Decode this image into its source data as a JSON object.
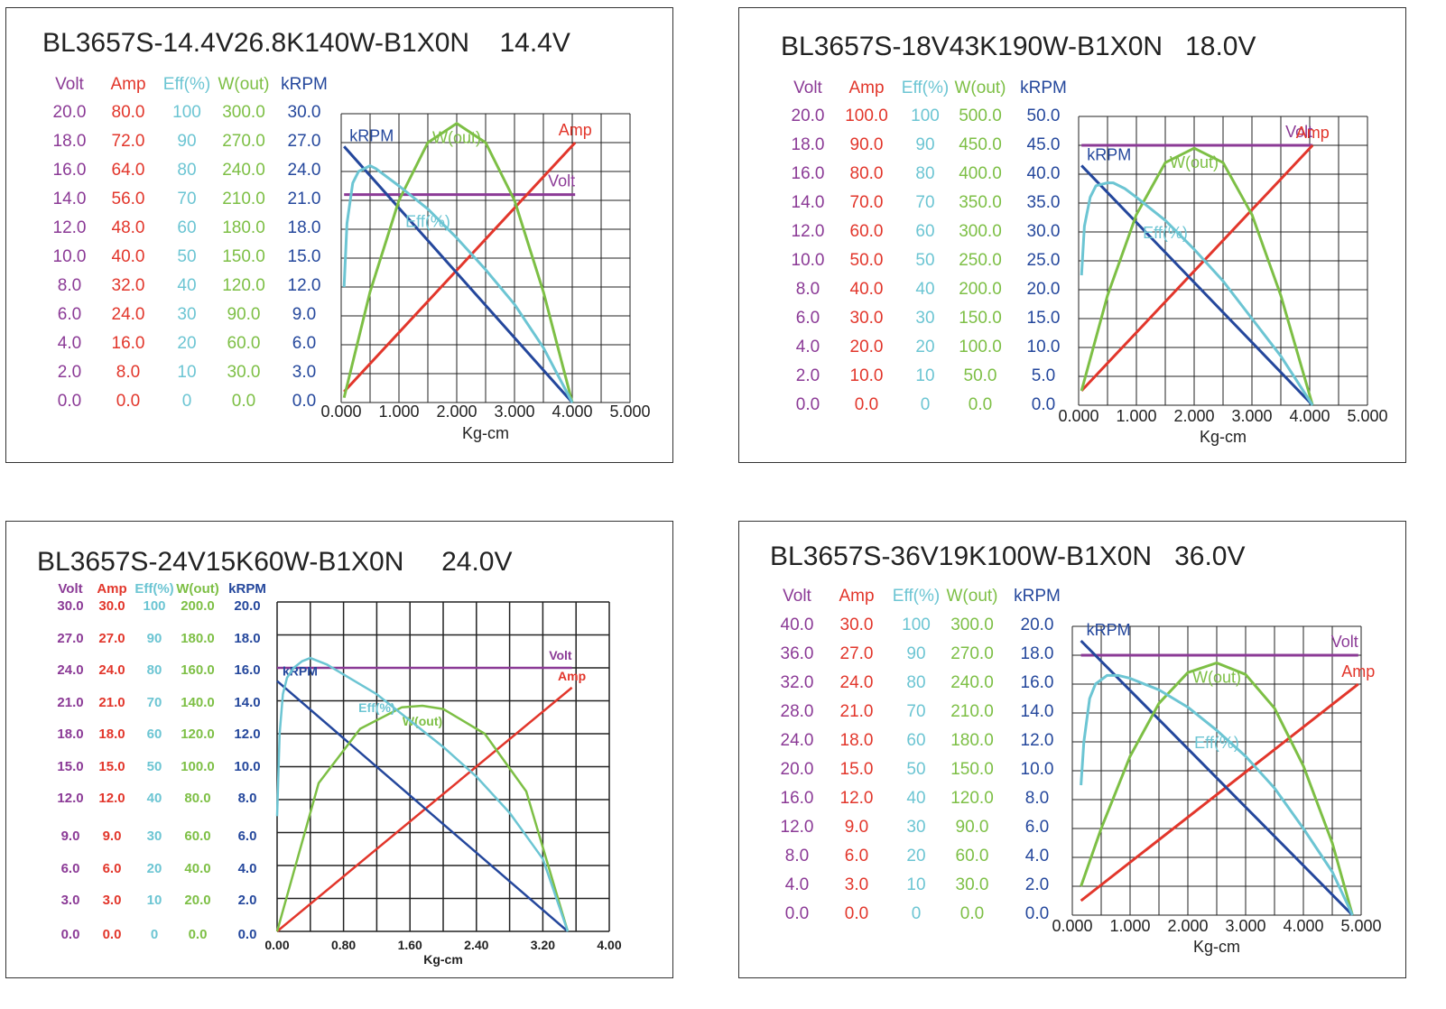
{
  "colors": {
    "volt": "#8B3A96",
    "amp": "#E2362B",
    "eff": "#6CC5D3",
    "wout": "#7DBF45",
    "krpm": "#24479C",
    "grid": "#222222"
  },
  "chart_data": [
    {
      "type": "line",
      "title": "BL3657S-14.4V26.8K140W-B1X0N",
      "voltage_label": "14.4V",
      "xlabel": "Kg-cm",
      "x_ticks": [
        "0.000",
        "1.000",
        "2.000",
        "3.000",
        "4.000",
        "5.000"
      ],
      "xlim": [
        0,
        5
      ],
      "grid": true,
      "y_axes": [
        {
          "name": "Volt",
          "ticks": [
            "20.0",
            "18.0",
            "16.0",
            "14.0",
            "12.0",
            "10.0",
            "8.0",
            "6.0",
            "4.0",
            "2.0",
            "0.0"
          ],
          "max": 20
        },
        {
          "name": "Amp",
          "ticks": [
            "80.0",
            "72.0",
            "64.0",
            "56.0",
            "48.0",
            "40.0",
            "32.0",
            "24.0",
            "16.0",
            "8.0",
            "0.0"
          ],
          "max": 80
        },
        {
          "name": "Eff(%)",
          "ticks": [
            "100",
            "90",
            "80",
            "70",
            "60",
            "50",
            "40",
            "30",
            "20",
            "10",
            "0"
          ],
          "max": 100
        },
        {
          "name": "W(out)",
          "ticks": [
            "300.0",
            "270.0",
            "240.0",
            "210.0",
            "180.0",
            "150.0",
            "120.0",
            "90.0",
            "60.0",
            "30.0",
            "0.0"
          ],
          "max": 300
        },
        {
          "name": "kRPM",
          "ticks": [
            "30.0",
            "27.0",
            "24.0",
            "21.0",
            "18.0",
            "15.0",
            "12.0",
            "9.0",
            "6.0",
            "3.0",
            "0.0"
          ],
          "max": 30
        }
      ],
      "series": [
        {
          "name": "Volt",
          "x": [
            0.05,
            4.05
          ],
          "values": [
            14.4,
            14.4
          ]
        },
        {
          "name": "Amp",
          "x": [
            0.05,
            4.05
          ],
          "values": [
            3,
            72
          ]
        },
        {
          "name": "kRPM",
          "x": [
            0.05,
            4.0
          ],
          "values": [
            26.6,
            0
          ]
        },
        {
          "name": "W(out)",
          "x": [
            0.05,
            0.5,
            1.0,
            1.5,
            2.0,
            2.5,
            3.0,
            3.5,
            4.0
          ],
          "values": [
            5,
            115,
            210,
            270,
            290,
            270,
            210,
            115,
            0
          ]
        },
        {
          "name": "Eff(%)",
          "x": [
            0.05,
            0.1,
            0.2,
            0.3,
            0.5,
            0.6,
            0.8,
            1.0,
            1.5,
            2.0,
            2.5,
            3.0,
            3.5,
            4.0
          ],
          "values": [
            40,
            62,
            76,
            80,
            82,
            81,
            78,
            75,
            67,
            57,
            46,
            34,
            19,
            0
          ]
        }
      ]
    },
    {
      "type": "line",
      "title": "BL3657S-18V43K190W-B1X0N",
      "voltage_label": "18.0V",
      "xlabel": "Kg-cm",
      "x_ticks": [
        "0.000",
        "1.000",
        "2.000",
        "3.000",
        "4.000",
        "5.000"
      ],
      "xlim": [
        0,
        5
      ],
      "grid": true,
      "y_axes": [
        {
          "name": "Volt",
          "ticks": [
            "20.0",
            "18.0",
            "16.0",
            "14.0",
            "12.0",
            "10.0",
            "8.0",
            "6.0",
            "4.0",
            "2.0",
            "0.0"
          ],
          "max": 20
        },
        {
          "name": "Amp",
          "ticks": [
            "100.0",
            "90.0",
            "80.0",
            "70.0",
            "60.0",
            "50.0",
            "40.0",
            "30.0",
            "20.0",
            "10.0",
            "0.0"
          ],
          "max": 100
        },
        {
          "name": "Eff(%)",
          "ticks": [
            "100",
            "90",
            "80",
            "70",
            "60",
            "50",
            "40",
            "30",
            "20",
            "10",
            "0"
          ],
          "max": 100
        },
        {
          "name": "W(out)",
          "ticks": [
            "500.0",
            "450.0",
            "400.0",
            "350.0",
            "300.0",
            "250.0",
            "200.0",
            "150.0",
            "100.0",
            "50.0",
            "0.0"
          ],
          "max": 500
        },
        {
          "name": "kRPM",
          "ticks": [
            "50.0",
            "45.0",
            "40.0",
            "35.0",
            "30.0",
            "25.0",
            "20.0",
            "15.0",
            "10.0",
            "5.0",
            "0.0"
          ],
          "max": 50
        }
      ],
      "series": [
        {
          "name": "Volt",
          "x": [
            0.05,
            4.05
          ],
          "values": [
            18,
            18
          ]
        },
        {
          "name": "Amp",
          "x": [
            0.05,
            4.05
          ],
          "values": [
            5,
            90
          ]
        },
        {
          "name": "kRPM",
          "x": [
            0.05,
            4.05
          ],
          "values": [
            41.5,
            0
          ]
        },
        {
          "name": "W(out)",
          "x": [
            0.05,
            0.5,
            1.0,
            1.5,
            2.0,
            2.5,
            3.0,
            3.5,
            4.05
          ],
          "values": [
            25,
            190,
            330,
            420,
            445,
            420,
            330,
            190,
            0
          ]
        },
        {
          "name": "Eff(%)",
          "x": [
            0.05,
            0.1,
            0.2,
            0.3,
            0.5,
            0.6,
            0.8,
            1.0,
            1.5,
            2.0,
            2.5,
            3.0,
            3.5,
            4.05
          ],
          "values": [
            45,
            62,
            72,
            76,
            77,
            77,
            75,
            72,
            64,
            54,
            43,
            30,
            17,
            0
          ]
        }
      ]
    },
    {
      "type": "line",
      "title": "BL3657S-24V15K60W-B1X0N",
      "voltage_label": "24.0V",
      "xlabel": "Kg-cm",
      "x_ticks": [
        "0.00",
        "0.80",
        "1.60",
        "2.40",
        "3.20",
        "4.00"
      ],
      "xlim": [
        0,
        4
      ],
      "grid": true,
      "y_axes": [
        {
          "name": "Volt",
          "ticks": [
            "30.0",
            "27.0",
            "24.0",
            "21.0",
            "18.0",
            "15.0",
            "12.0",
            "9.0",
            "6.0",
            "3.0",
            "0.0"
          ],
          "max": 30
        },
        {
          "name": "Amp",
          "ticks": [
            "30.0",
            "27.0",
            "24.0",
            "21.0",
            "18.0",
            "15.0",
            "12.0",
            "9.0",
            "6.0",
            "3.0",
            "0.0"
          ],
          "max": 30
        },
        {
          "name": "Eff(%)",
          "ticks": [
            "100",
            "90",
            "80",
            "70",
            "60",
            "50",
            "40",
            "30",
            "20",
            "10",
            "0"
          ],
          "max": 100
        },
        {
          "name": "W(out)",
          "ticks": [
            "200.0",
            "180.0",
            "160.0",
            "140.0",
            "120.0",
            "100.0",
            "80.0",
            "60.0",
            "40.0",
            "20.0",
            "0.0"
          ],
          "max": 200
        },
        {
          "name": "kRPM",
          "ticks": [
            "20.0",
            "18.0",
            "16.0",
            "14.0",
            "12.0",
            "10.0",
            "8.0",
            "6.0",
            "4.0",
            "2.0",
            "0.0"
          ],
          "max": 20
        }
      ],
      "series": [
        {
          "name": "Volt",
          "x": [
            0.0,
            3.55
          ],
          "values": [
            24,
            24
          ]
        },
        {
          "name": "Amp",
          "x": [
            0.0,
            3.55
          ],
          "values": [
            0,
            22.2
          ]
        },
        {
          "name": "kRPM",
          "x": [
            0.0,
            3.5
          ],
          "values": [
            15.2,
            0
          ]
        },
        {
          "name": "W(out)",
          "x": [
            0.0,
            0.5,
            1.0,
            1.5,
            1.75,
            2.0,
            2.5,
            3.0,
            3.5
          ],
          "values": [
            0,
            90,
            123,
            136,
            137,
            135,
            120,
            85,
            0
          ]
        },
        {
          "name": "Eff(%)",
          "x": [
            0.0,
            0.03,
            0.07,
            0.12,
            0.2,
            0.3,
            0.4,
            0.6,
            0.8,
            1.2,
            1.6,
            2.0,
            2.4,
            2.8,
            3.2,
            3.5
          ],
          "values": [
            35,
            60,
            72,
            77,
            80,
            82,
            83,
            81,
            78,
            72,
            64,
            56,
            47,
            36,
            22,
            0
          ]
        }
      ]
    },
    {
      "type": "line",
      "title": "BL3657S-36V19K100W-B1X0N",
      "voltage_label": "36.0V",
      "xlabel": "Kg-cm",
      "x_ticks": [
        "0.000",
        "1.000",
        "2.000",
        "3.000",
        "4.000",
        "5.000"
      ],
      "xlim": [
        0,
        5
      ],
      "grid": true,
      "y_axes": [
        {
          "name": "Volt",
          "ticks": [
            "40.0",
            "36.0",
            "32.0",
            "28.0",
            "24.0",
            "20.0",
            "16.0",
            "12.0",
            "8.0",
            "4.0",
            "0.0"
          ],
          "max": 40
        },
        {
          "name": "Amp",
          "ticks": [
            "30.0",
            "27.0",
            "24.0",
            "21.0",
            "18.0",
            "15.0",
            "12.0",
            "9.0",
            "6.0",
            "3.0",
            "0.0"
          ],
          "max": 30
        },
        {
          "name": "Eff(%)",
          "ticks": [
            "100",
            "90",
            "80",
            "70",
            "60",
            "50",
            "40",
            "30",
            "20",
            "10",
            "0"
          ],
          "max": 100
        },
        {
          "name": "W(out)",
          "ticks": [
            "300.0",
            "270.0",
            "240.0",
            "210.0",
            "180.0",
            "150.0",
            "120.0",
            "90.0",
            "60.0",
            "30.0",
            "0.0"
          ],
          "max": 300
        },
        {
          "name": "kRPM",
          "ticks": [
            "20.0",
            "18.0",
            "16.0",
            "14.0",
            "12.0",
            "10.0",
            "8.0",
            "6.0",
            "4.0",
            "2.0",
            "0.0"
          ],
          "max": 20
        }
      ],
      "series": [
        {
          "name": "Volt",
          "x": [
            0.15,
            4.95
          ],
          "values": [
            36,
            36
          ]
        },
        {
          "name": "Amp",
          "x": [
            0.15,
            4.95
          ],
          "values": [
            1.5,
            24
          ]
        },
        {
          "name": "kRPM",
          "x": [
            0.15,
            4.85
          ],
          "values": [
            19,
            0
          ]
        },
        {
          "name": "W(out)",
          "x": [
            0.15,
            0.5,
            1.0,
            1.5,
            2.0,
            2.5,
            3.0,
            3.5,
            4.0,
            4.5,
            4.85
          ],
          "values": [
            30,
            90,
            165,
            220,
            252,
            262,
            250,
            215,
            155,
            75,
            0
          ]
        },
        {
          "name": "Eff(%)",
          "x": [
            0.15,
            0.2,
            0.3,
            0.4,
            0.6,
            0.8,
            1.0,
            1.5,
            2.0,
            2.5,
            3.0,
            3.5,
            4.0,
            4.5,
            4.85
          ],
          "values": [
            45,
            60,
            75,
            80,
            83,
            83,
            82,
            78,
            72,
            64,
            55,
            44,
            30,
            15,
            0
          ]
        }
      ]
    }
  ]
}
